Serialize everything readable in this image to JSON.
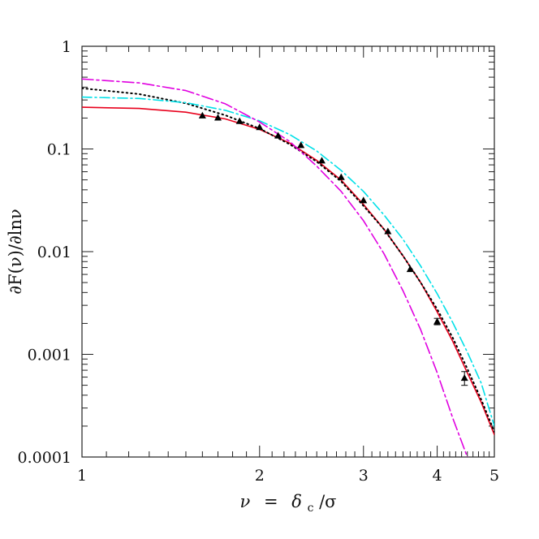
{
  "chart_data": {
    "type": "line",
    "xscale": "log",
    "yscale": "log",
    "xlim": [
      1,
      5
    ],
    "ylim": [
      0.0001,
      1
    ],
    "xlabel_parts": {
      "nu": "ν",
      "eq": "=",
      "delta": "δ",
      "sub": "c",
      "slash": "/σ"
    },
    "ylabel": "∂F(ν)/∂lnν",
    "x_ticks": [
      {
        "value": 1,
        "label": "1"
      },
      {
        "value": 2,
        "label": "2"
      },
      {
        "value": 3,
        "label": "3"
      },
      {
        "value": 4,
        "label": "4"
      },
      {
        "value": 5,
        "label": "5"
      }
    ],
    "y_ticks": [
      {
        "value": 1,
        "label": "1"
      },
      {
        "value": 0.1,
        "label": "0.1"
      },
      {
        "value": 0.01,
        "label": "0.01"
      },
      {
        "value": 0.001,
        "label": "0.001"
      },
      {
        "value": 0.0001,
        "label": "0.0001"
      }
    ],
    "series": [
      {
        "color": "#e8001c",
        "dash": "solid",
        "x": [
          1.0,
          1.25,
          1.5,
          1.75,
          2.0,
          2.25,
          2.5,
          2.75,
          3.0,
          3.25,
          3.5,
          3.75,
          4.0,
          4.25,
          4.5,
          4.75,
          5.0
        ],
        "y": [
          0.255,
          0.248,
          0.228,
          0.196,
          0.155,
          0.114,
          0.0773,
          0.0497,
          0.0288,
          0.0166,
          0.00912,
          0.00501,
          0.00259,
          0.00134,
          0.000661,
          0.000341,
          0.000165
        ]
      },
      {
        "color": "#000000",
        "dash": "dotted",
        "x": [
          1.0,
          1.25,
          1.5,
          1.75,
          2.0,
          2.25,
          2.5,
          2.75,
          3.0,
          3.25,
          3.5,
          3.75,
          4.0,
          4.25,
          4.5,
          4.75,
          5.0
        ],
        "y": [
          0.39,
          0.342,
          0.278,
          0.213,
          0.158,
          0.111,
          0.0752,
          0.0483,
          0.0279,
          0.0165,
          0.00912,
          0.00501,
          0.00275,
          0.00145,
          0.000724,
          0.000363,
          0.000176
        ]
      },
      {
        "color": "#00e0e8",
        "dash": "dashdot",
        "x": [
          1.0,
          1.25,
          1.5,
          1.75,
          2.0,
          2.25,
          2.5,
          2.75,
          3.0,
          3.25,
          3.5,
          3.75,
          4.0,
          4.25,
          4.5,
          4.75,
          5.0
        ],
        "y": [
          0.32,
          0.31,
          0.282,
          0.238,
          0.188,
          0.138,
          0.0955,
          0.0617,
          0.0386,
          0.0228,
          0.0132,
          0.00724,
          0.00389,
          0.00204,
          0.00105,
          0.000525,
          0.0002
        ]
      },
      {
        "color": "#e000e0",
        "dash": "longdash",
        "x": [
          1.0,
          1.25,
          1.5,
          1.75,
          2.0,
          2.25,
          2.5,
          2.75,
          3.0,
          3.25,
          3.5,
          3.75,
          4.0,
          4.25,
          4.5,
          4.7
        ],
        "y": [
          0.48,
          0.44,
          0.37,
          0.275,
          0.183,
          0.118,
          0.068,
          0.0386,
          0.02,
          0.00955,
          0.00417,
          0.00174,
          0.000661,
          0.00024,
          0.0001,
          4.5e-05
        ]
      }
    ],
    "points": {
      "color": "#000000",
      "marker": "triangle",
      "x": [
        1.6,
        1.7,
        1.85,
        2.0,
        2.15,
        2.35,
        2.55,
        2.75,
        3.0,
        3.3,
        3.6,
        4.0,
        4.45
      ],
      "y": [
        0.212,
        0.202,
        0.187,
        0.163,
        0.135,
        0.109,
        0.0771,
        0.0532,
        0.0316,
        0.0158,
        0.00676,
        0.00209,
        0.000589
      ],
      "err": [
        0,
        0,
        0,
        0,
        0,
        0,
        0,
        0,
        0,
        0,
        0,
        0.00015,
        9e-05
      ]
    }
  }
}
